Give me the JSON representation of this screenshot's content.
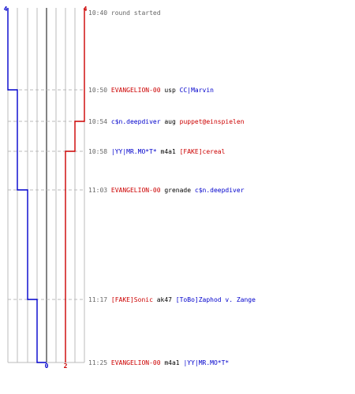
{
  "colors": {
    "blue_team": "#0000cc",
    "red_team": "#cc0000",
    "neutral": "#000000",
    "time": "#666666",
    "grid": "#bbbbbb",
    "center": "#666666"
  },
  "axis": {
    "blue_top_score": "4",
    "red_top_score": "4",
    "blue_final_score": "0",
    "red_final_score": "2"
  },
  "events": [
    {
      "time": "10:40",
      "parts": [
        {
          "text": "round started",
          "team": "time"
        }
      ]
    },
    {
      "time": "10:50",
      "parts": [
        {
          "text": "EVANGELION-00",
          "team": "red"
        },
        {
          "text": " usp ",
          "team": "neutral"
        },
        {
          "text": "CC|Marvin",
          "team": "blue"
        }
      ]
    },
    {
      "time": "10:54",
      "parts": [
        {
          "text": "c$n.deepdiver",
          "team": "blue"
        },
        {
          "text": " aug ",
          "team": "neutral"
        },
        {
          "text": "puppet@einspielen",
          "team": "red"
        }
      ]
    },
    {
      "time": "10:58",
      "parts": [
        {
          "text": "|YY|MR.MO*T*",
          "team": "blue"
        },
        {
          "text": " m4a1 ",
          "team": "neutral"
        },
        {
          "text": "[FAKE]cereal",
          "team": "red"
        }
      ]
    },
    {
      "time": "11:03",
      "parts": [
        {
          "text": "EVANGELION-00",
          "team": "red"
        },
        {
          "text": " grenade ",
          "team": "neutral"
        },
        {
          "text": "c$n.deepdiver",
          "team": "blue"
        }
      ]
    },
    {
      "time": "11:17",
      "parts": [
        {
          "text": "[FAKE]Sonic",
          "team": "red"
        },
        {
          "text": " ak47 ",
          "team": "neutral"
        },
        {
          "text": "[ToBo]Zaphod v. Zange",
          "team": "blue"
        }
      ]
    },
    {
      "time": "11:25",
      "parts": [
        {
          "text": "EVANGELION-00",
          "team": "red"
        },
        {
          "text": " m4a1 ",
          "team": "neutral"
        },
        {
          "text": "|YY|MR.MO*T*",
          "team": "blue"
        }
      ]
    }
  ],
  "blue_alive": [
    4,
    3,
    3,
    3,
    2,
    1,
    0
  ],
  "red_alive": [
    4,
    4,
    3,
    2,
    2,
    2,
    2
  ]
}
